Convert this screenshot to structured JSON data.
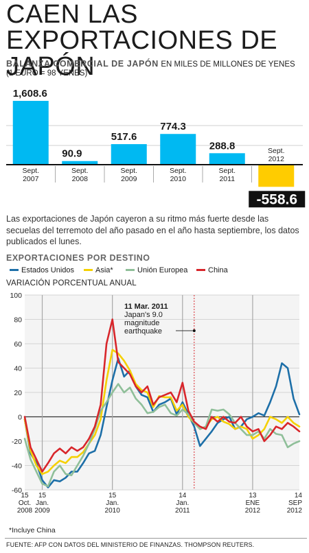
{
  "title": "CAEN LAS EXPORTACIONES DE JAPÓN",
  "bar_heading": "BALANZA COMERCIAL DE JAPÓN",
  "bar_heading_units": "EN MILES DE MILLONES DE YENES",
  "bar_note": "(1 EURO = 98 YENES)",
  "paragraph": "Las exportaciones de Japón cayeron a su ritmo más fuerte desde las secuelas del terremoto del año pasado en el año hasta septiembre, los datos publicados el lunes.",
  "line_heading": "EXPORTACIONES POR DESTINO",
  "line_subheading": "VARIACIÓN PORCENTUAL ANUAL",
  "footnote": "*Incluye China",
  "source": "FUENTE: AFP CON DATOS DEL MINISTERIO DE FINANZAS. THOMPSON REUTERS.",
  "colors": {
    "bar_positive": "#00b9f2",
    "bar_negative": "#ffcc00",
    "series": [
      "#1d6fa8",
      "#f5d000",
      "#8fbf99",
      "#d8262b"
    ]
  },
  "chart_data": [
    {
      "type": "bar",
      "categories": [
        [
          "Sept.",
          "2007"
        ],
        [
          "Sept.",
          "2008"
        ],
        [
          "Sept.",
          "2009"
        ],
        [
          "Sept.",
          "2010"
        ],
        [
          "Sept.",
          "2011"
        ],
        [
          "Sept.",
          "2012"
        ]
      ],
      "values": [
        1608.6,
        90.9,
        517.6,
        774.3,
        288.8,
        -558.6
      ],
      "labels": [
        "1,608.6",
        "90.9",
        "517.6",
        "774.3",
        "288.8",
        "-558.6"
      ],
      "ylim": [
        -600,
        1700
      ],
      "baseline": 0
    },
    {
      "type": "line",
      "ylim": [
        -60,
        100
      ],
      "yticks": [
        "100",
        "80",
        "60",
        "40",
        "20",
        "0",
        "-20",
        "-40",
        "-60"
      ],
      "xlim": [
        0,
        47
      ],
      "x_ticks": [
        {
          "x": 0,
          "lines": [
            "15",
            "Oct.",
            "2008"
          ]
        },
        {
          "x": 3,
          "lines": [
            "15",
            "Jan.",
            "2009"
          ]
        },
        {
          "x": 15,
          "lines": [
            "15",
            "Jan.",
            "2010"
          ]
        },
        {
          "x": 27,
          "lines": [
            "14",
            "Jan.",
            "2011"
          ]
        },
        {
          "x": 39,
          "lines": [
            "13",
            "ENE",
            "2012"
          ]
        },
        {
          "x": 47,
          "lines": [
            "14",
            "SEP",
            "2012"
          ]
        }
      ],
      "vlines": [
        3,
        15,
        27,
        39
      ],
      "event_x": 29,
      "annotation": {
        "lines": [
          "11 Mar. 2011",
          "Japan's 9.0",
          "magnitude",
          "earthquake"
        ]
      },
      "series": [
        {
          "name": "Estados Unidos",
          "values": [
            -2,
            -30,
            -38,
            -52,
            -58,
            -52,
            -53,
            -50,
            -45,
            -45,
            -38,
            -30,
            -28,
            -15,
            8,
            30,
            48,
            33,
            38,
            25,
            18,
            16,
            4,
            10,
            12,
            15,
            2,
            12,
            2,
            -8,
            -24,
            -18,
            -12,
            -5,
            -2,
            0,
            -10,
            -8,
            -2,
            0,
            3,
            1,
            12,
            25,
            44,
            40,
            15,
            2
          ]
        },
        {
          "name": "Asia*",
          "values": [
            -2,
            -28,
            -40,
            -47,
            -45,
            -40,
            -36,
            -38,
            -33,
            -33,
            -29,
            -22,
            -15,
            -2,
            30,
            55,
            52,
            46,
            38,
            27,
            22,
            20,
            8,
            17,
            16,
            16,
            5,
            10,
            0,
            -5,
            -10,
            -8,
            -2,
            0,
            -4,
            -6,
            -10,
            -8,
            -10,
            -18,
            -15,
            -10,
            0,
            -2,
            -5,
            0,
            -5,
            -8
          ]
        },
        {
          "name": "Unión Europea",
          "values": [
            -18,
            -35,
            -45,
            -55,
            -57,
            -45,
            -40,
            -47,
            -48,
            -40,
            -32,
            -22,
            -10,
            5,
            12,
            20,
            27,
            20,
            24,
            15,
            10,
            3,
            4,
            8,
            10,
            3,
            1,
            6,
            2,
            -5,
            -10,
            -8,
            6,
            5,
            6,
            2,
            -5,
            -10,
            -15,
            -15,
            -12,
            -18,
            -10,
            -14,
            -15,
            -25,
            -22,
            -20
          ]
        },
        {
          "name": "China",
          "values": [
            0,
            -25,
            -35,
            -45,
            -38,
            -30,
            -26,
            -30,
            -25,
            -28,
            -25,
            -18,
            -8,
            10,
            60,
            80,
            45,
            40,
            35,
            25,
            20,
            25,
            10,
            16,
            18,
            20,
            12,
            28,
            5,
            -4,
            -8,
            -10,
            0,
            -4,
            0,
            -4,
            -5,
            0,
            -8,
            -12,
            -10,
            -20,
            -15,
            -8,
            -10,
            -5,
            -8,
            -12
          ]
        }
      ]
    }
  ]
}
